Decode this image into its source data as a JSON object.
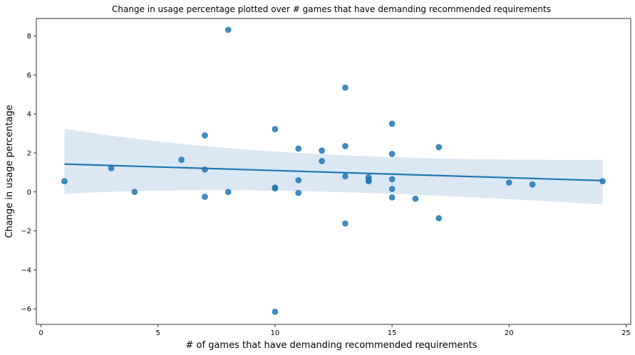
{
  "chart_data": {
    "type": "scatter",
    "title": "Change in usage percentage plotted over # games that have demanding recommended requirements",
    "xlabel": "# of games that have demanding recommended requirements",
    "ylabel": "Change in usage percentage",
    "xlim": [
      -0.2,
      25.2
    ],
    "ylim": [
      -6.8,
      8.9
    ],
    "xticks": [
      0,
      5,
      10,
      15,
      20,
      25
    ],
    "yticks": [
      -6,
      -4,
      -2,
      0,
      2,
      4,
      6,
      8
    ],
    "grid": false,
    "series": [
      {
        "color": "#1f77b4",
        "points": [
          [
            1,
            0.55
          ],
          [
            3,
            1.22
          ],
          [
            4,
            0.0
          ],
          [
            6,
            1.65
          ],
          [
            7,
            2.9
          ],
          [
            7,
            1.15
          ],
          [
            7,
            -0.25
          ],
          [
            8,
            8.32
          ],
          [
            8,
            0.0
          ],
          [
            10,
            3.22
          ],
          [
            10,
            0.22
          ],
          [
            10,
            0.18
          ],
          [
            10,
            -6.15
          ],
          [
            11,
            2.22
          ],
          [
            11,
            0.6
          ],
          [
            11,
            -0.05
          ],
          [
            12,
            2.12
          ],
          [
            12,
            1.58
          ],
          [
            13,
            5.35
          ],
          [
            13,
            2.35
          ],
          [
            13,
            0.8
          ],
          [
            13,
            -1.62
          ],
          [
            14,
            0.75
          ],
          [
            14,
            0.62
          ],
          [
            14,
            0.55
          ],
          [
            15,
            3.5
          ],
          [
            15,
            1.95
          ],
          [
            15,
            0.65
          ],
          [
            15,
            0.15
          ],
          [
            15,
            -0.28
          ],
          [
            16,
            -0.35
          ],
          [
            17,
            2.3
          ],
          [
            17,
            -1.35
          ],
          [
            20,
            0.48
          ],
          [
            21,
            0.38
          ],
          [
            24,
            0.55
          ]
        ]
      }
    ],
    "regression": {
      "x": [
        1,
        24
      ],
      "y": [
        1.43,
        0.58
      ],
      "ci_upper": [
        3.25,
        1.65
      ],
      "ci_lower": [
        -0.1,
        -0.65
      ],
      "color": "#1f77b4",
      "band_color": "#dbe7f3"
    }
  }
}
